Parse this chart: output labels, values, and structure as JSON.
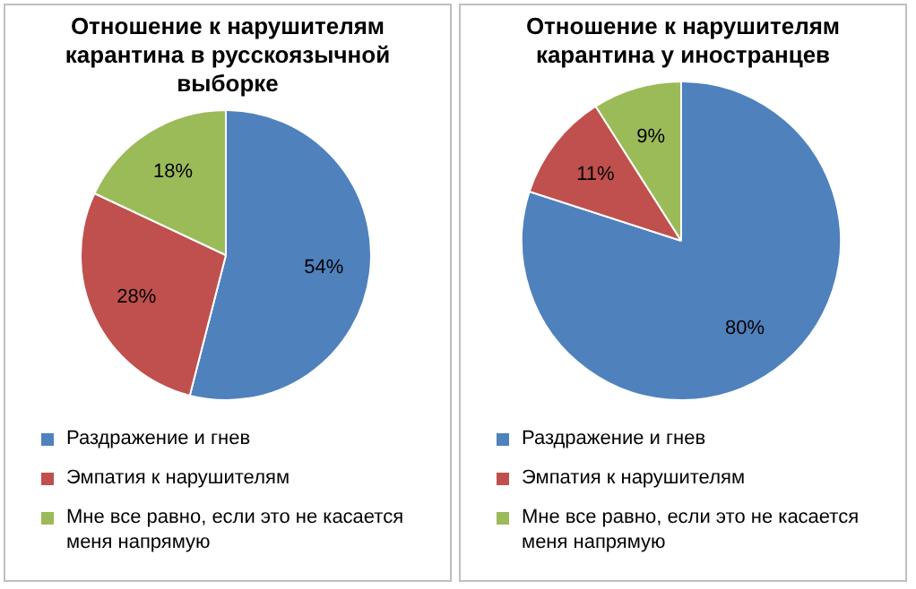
{
  "chart_data": [
    {
      "type": "pie",
      "title": "Отношение к нарушителям карантина в русскоязычной выборке",
      "categories": [
        "Раздражение и гнев",
        "Эмпатия к нарушителям",
        "Мне все равно, если это не касается меня напрямую"
      ],
      "values": [
        54,
        28,
        18
      ],
      "value_labels": [
        "54%",
        "28%",
        "18%"
      ],
      "colors": [
        "#4f81bd",
        "#c0504d",
        "#9bbb59"
      ],
      "legend": "bottom"
    },
    {
      "type": "pie",
      "title": "Отношение к нарушителям карантина у иностранцев",
      "categories": [
        "Раздражение и гнев",
        "Эмпатия к нарушителям",
        "Мне все равно, если это не касается меня напрямую"
      ],
      "values": [
        80,
        11,
        9
      ],
      "value_labels": [
        "80%",
        "11%",
        "9%"
      ],
      "colors": [
        "#4f81bd",
        "#c0504d",
        "#9bbb59"
      ],
      "legend": "bottom"
    }
  ]
}
